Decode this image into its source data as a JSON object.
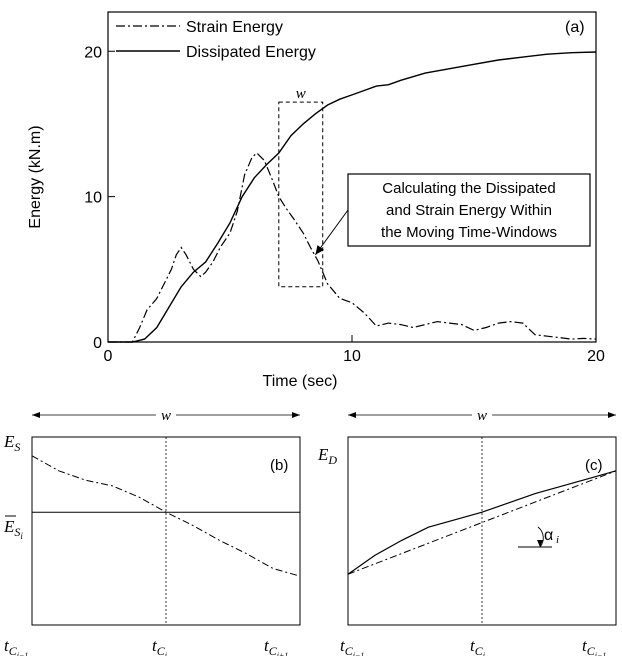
{
  "chart_data": [
    {
      "panel_label": "(a)",
      "type": "line",
      "xlabel": "Time (sec)",
      "ylabel": "Energy (kN.m)",
      "xlim": [
        0,
        20
      ],
      "ylim": [
        0,
        22.7
      ],
      "x_ticks": [
        0,
        10,
        20
      ],
      "y_ticks": [
        0,
        10,
        20
      ],
      "grid": false,
      "legend_position": "top-left",
      "series": [
        {
          "name": "Strain Energy",
          "style": "dash-dot",
          "x": [
            0,
            1.0,
            1.3,
            1.6,
            2.0,
            2.3,
            2.6,
            2.8,
            3.0,
            3.2,
            3.5,
            3.8,
            4.0,
            4.3,
            4.6,
            5.0,
            5.3,
            5.6,
            5.9,
            6.1,
            6.4,
            6.7,
            7.0,
            7.3,
            7.6,
            8.0,
            8.3,
            8.6,
            9.0,
            9.5,
            10.0,
            10.5,
            11.0,
            11.5,
            12.0,
            12.5,
            13.0,
            13.5,
            14.0,
            14.5,
            15.0,
            15.5,
            16.0,
            16.5,
            17.0,
            17.5,
            18.0,
            18.5,
            19.0,
            19.5,
            20.0
          ],
          "y": [
            0,
            0,
            1.0,
            2.2,
            3.0,
            4.0,
            5.0,
            6.0,
            6.5,
            6.0,
            5.0,
            4.5,
            4.8,
            5.5,
            6.5,
            7.5,
            9.0,
            11.5,
            12.7,
            13.0,
            12.5,
            11.3,
            10.0,
            9.2,
            8.5,
            7.5,
            6.5,
            5.6,
            4.0,
            3.0,
            2.7,
            2.0,
            1.1,
            1.3,
            1.2,
            1.0,
            1.2,
            1.4,
            1.3,
            1.2,
            0.8,
            1.0,
            1.3,
            1.4,
            1.3,
            0.5,
            0.4,
            0.3,
            0.2,
            0.25,
            0.2
          ]
        },
        {
          "name": "Dissipated Energy",
          "style": "solid",
          "x": [
            0,
            1.0,
            1.5,
            2.0,
            2.5,
            3.0,
            3.5,
            4.0,
            4.5,
            5.0,
            5.5,
            6.0,
            6.5,
            7.0,
            7.5,
            8.0,
            8.5,
            9.0,
            9.5,
            10.0,
            10.5,
            11.0,
            11.5,
            12.0,
            13.0,
            14.0,
            15.0,
            16.0,
            17.0,
            18.0,
            19.0,
            20.0
          ],
          "y": [
            0,
            0,
            0.2,
            1.0,
            2.4,
            3.8,
            4.8,
            5.5,
            6.8,
            8.2,
            10.0,
            11.3,
            12.2,
            13.0,
            14.2,
            15.0,
            15.7,
            16.3,
            16.7,
            17.0,
            17.3,
            17.6,
            17.7,
            18.0,
            18.5,
            18.8,
            19.1,
            19.4,
            19.6,
            19.8,
            19.9,
            19.95
          ]
        }
      ],
      "annotations": [
        {
          "text": "w",
          "x": 8.0,
          "y": 16.5
        },
        {
          "text_lines": [
            "Calculating the Dissipated",
            "and Strain Energy Within",
            "the Moving Time-Windows"
          ],
          "arrow_to": [
            8.5,
            6.0
          ]
        }
      ],
      "window_box": {
        "x0": 7.0,
        "x1": 8.8,
        "y0": 3.8,
        "y1": 16.5
      }
    },
    {
      "panel_label": "(b)",
      "type": "line",
      "y_axis_label": "E_S",
      "mean_label": "E̅_Si",
      "window_label": "w",
      "x_tick_labels": [
        "t_C(i-1)",
        "t_C(i)",
        "t_C(i+1)"
      ],
      "x": [
        0,
        0.1,
        0.2,
        0.3,
        0.4,
        0.5,
        0.6,
        0.7,
        0.8,
        0.9,
        1.0
      ],
      "strain_curve": [
        0.9,
        0.82,
        0.77,
        0.74,
        0.68,
        0.6,
        0.53,
        0.45,
        0.38,
        0.3,
        0.26
      ],
      "mean_level": 0.6
    },
    {
      "panel_label": "(c)",
      "type": "line",
      "y_axis_label": "E_D",
      "angle_label": "α_i",
      "window_label": "w",
      "x_tick_labels": [
        "t_C(i-1)",
        "t_C(i)",
        "t_C(i-1)"
      ],
      "x": [
        0,
        0.1,
        0.2,
        0.3,
        0.4,
        0.5,
        0.6,
        0.7,
        0.8,
        0.9,
        1.0
      ],
      "dissipated_curve": [
        0.27,
        0.37,
        0.45,
        0.52,
        0.56,
        0.6,
        0.65,
        0.7,
        0.74,
        0.78,
        0.82
      ],
      "chord": [
        0.27,
        0.82
      ]
    }
  ],
  "colors": {
    "ink": "#000000",
    "background": "#ffffff"
  }
}
